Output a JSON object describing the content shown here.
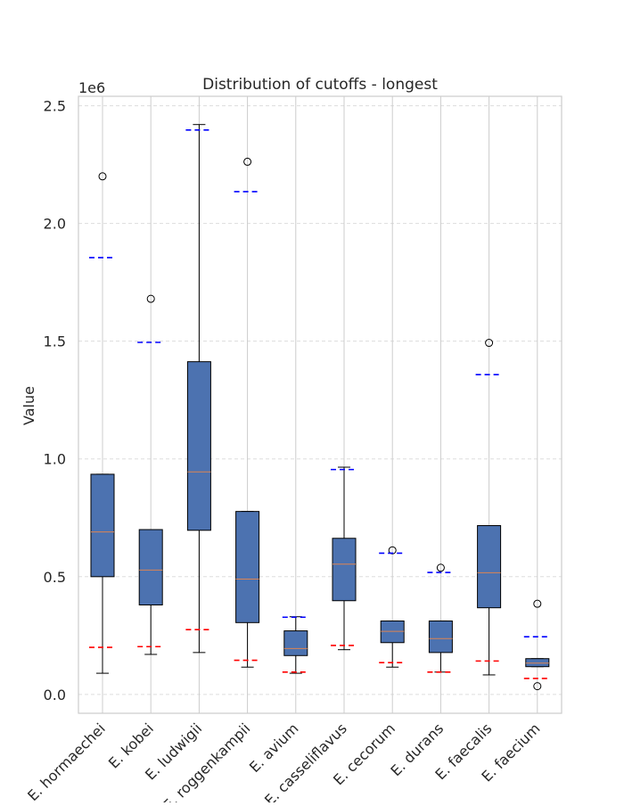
{
  "chart_data": {
    "type": "box",
    "title": "Distribution of cutoffs - longest",
    "xlabel": "",
    "ylabel": "Value",
    "y_scale_label": "1e6",
    "ylim": [
      -80000,
      2540000
    ],
    "yticks": [
      0,
      500000,
      1000000,
      1500000,
      2000000,
      2500000
    ],
    "ytick_labels": [
      "0.0",
      "0.5",
      "1.0",
      "1.5",
      "2.0",
      "2.5"
    ],
    "grid": true,
    "categories": [
      "E. hormaechei",
      "E. kobei",
      "E. ludwigii",
      "E. roggenkampii",
      "E. avium",
      "E. casseliflavus",
      "E. cecorum",
      "E. durans",
      "E. faecalis",
      "E. faecium"
    ],
    "boxes": [
      {
        "whisker_low": 90000,
        "q1": 500000,
        "median": 690000,
        "q3": 935000,
        "whisker_high": 935000,
        "outliers": [
          2200000
        ],
        "red_line": 200000,
        "blue_line": 1855000
      },
      {
        "whisker_low": 170000,
        "q1": 380000,
        "median": 528000,
        "q3": 700000,
        "whisker_high": 700000,
        "outliers": [
          1680000
        ],
        "red_line": 203000,
        "blue_line": 1495000
      },
      {
        "whisker_low": 178000,
        "q1": 697000,
        "median": 945000,
        "q3": 1413000,
        "whisker_high": 2420000,
        "outliers": [],
        "red_line": 275000,
        "blue_line": 2397000
      },
      {
        "whisker_low": 116000,
        "q1": 305000,
        "median": 490000,
        "q3": 777000,
        "whisker_high": 777000,
        "outliers": [
          2262000
        ],
        "red_line": 145000,
        "blue_line": 2135000
      },
      {
        "whisker_low": 90000,
        "q1": 165000,
        "median": 195000,
        "q3": 270000,
        "whisker_high": 330000,
        "outliers": [],
        "red_line": 95000,
        "blue_line": 328000
      },
      {
        "whisker_low": 190000,
        "q1": 398000,
        "median": 553000,
        "q3": 663000,
        "whisker_high": 965000,
        "outliers": [],
        "red_line": 208000,
        "blue_line": 955000
      },
      {
        "whisker_low": 116000,
        "q1": 220000,
        "median": 268000,
        "q3": 312000,
        "whisker_high": 312000,
        "outliers": [
          612000
        ],
        "red_line": 135000,
        "blue_line": 600000
      },
      {
        "whisker_low": 95000,
        "q1": 178000,
        "median": 237000,
        "q3": 312000,
        "whisker_high": 312000,
        "outliers": [
          538000
        ],
        "red_line": 95000,
        "blue_line": 518000
      },
      {
        "whisker_low": 83000,
        "q1": 368000,
        "median": 517000,
        "q3": 717000,
        "whisker_high": 717000,
        "outliers": [
          1493000
        ],
        "red_line": 142000,
        "blue_line": 1358000
      },
      {
        "whisker_low": 118000,
        "q1": 118000,
        "median": 133000,
        "q3": 152000,
        "whisker_high": 152000,
        "outliers": [
          385000,
          35000
        ],
        "red_line": 68000,
        "blue_line": 245000
      }
    ],
    "colors": {
      "box_fill": "#4c72b0",
      "box_edge": "#000000",
      "median": "#dd8452",
      "red_line": "#ff0000",
      "blue_line": "#0000ff",
      "grid": "#dddddd",
      "axis_edge": "#cccccc"
    }
  }
}
